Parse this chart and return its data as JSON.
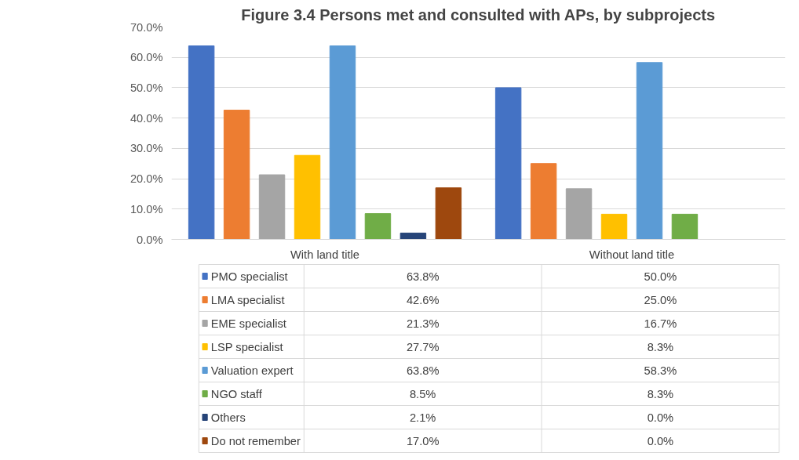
{
  "chart_data": {
    "type": "bar",
    "title": "Figure 3.4 Persons met and consulted with APs, by subprojects",
    "categories": [
      "With land title",
      "Without land title"
    ],
    "series": [
      {
        "name": "PMO specialist",
        "color": "#4472c4",
        "values": [
          63.8,
          50.0
        ],
        "value_labels": [
          "63.8%",
          "50.0%"
        ]
      },
      {
        "name": "LMA specialist",
        "color": "#ed7d31",
        "values": [
          42.6,
          25.0
        ],
        "value_labels": [
          "42.6%",
          "25.0%"
        ]
      },
      {
        "name": "EME specialist",
        "color": "#a5a5a5",
        "values": [
          21.3,
          16.7
        ],
        "value_labels": [
          "21.3%",
          "16.7%"
        ]
      },
      {
        "name": "LSP specialist",
        "color": "#ffc000",
        "values": [
          27.7,
          8.3
        ],
        "value_labels": [
          "27.7%",
          "8.3%"
        ]
      },
      {
        "name": "Valuation expert",
        "color": "#5b9bd5",
        "values": [
          63.8,
          58.3
        ],
        "value_labels": [
          "63.8%",
          "58.3%"
        ]
      },
      {
        "name": "NGO staff",
        "color": "#70ad47",
        "values": [
          8.5,
          8.3
        ],
        "value_labels": [
          "8.5%",
          "8.3%"
        ]
      },
      {
        "name": "Others",
        "color": "#264478",
        "values": [
          2.1,
          0.0
        ],
        "value_labels": [
          "2.1%",
          "0.0%"
        ]
      },
      {
        "name": "Do not remember",
        "color": "#9e480e",
        "values": [
          17.0,
          0.0
        ],
        "value_labels": [
          "17.0%",
          "0.0%"
        ]
      }
    ],
    "ylim": [
      0,
      70
    ],
    "yticks": [
      {
        "value": 0,
        "label": "0.0%"
      },
      {
        "value": 10,
        "label": "10.0%"
      },
      {
        "value": 20,
        "label": "20.0%"
      },
      {
        "value": 30,
        "label": "30.0%"
      },
      {
        "value": 40,
        "label": "40.0%"
      },
      {
        "value": 50,
        "label": "50.0%"
      },
      {
        "value": 60,
        "label": "60.0%"
      },
      {
        "value": 70,
        "label": "70.0%"
      }
    ],
    "grid": "y",
    "legend": "bottom"
  }
}
